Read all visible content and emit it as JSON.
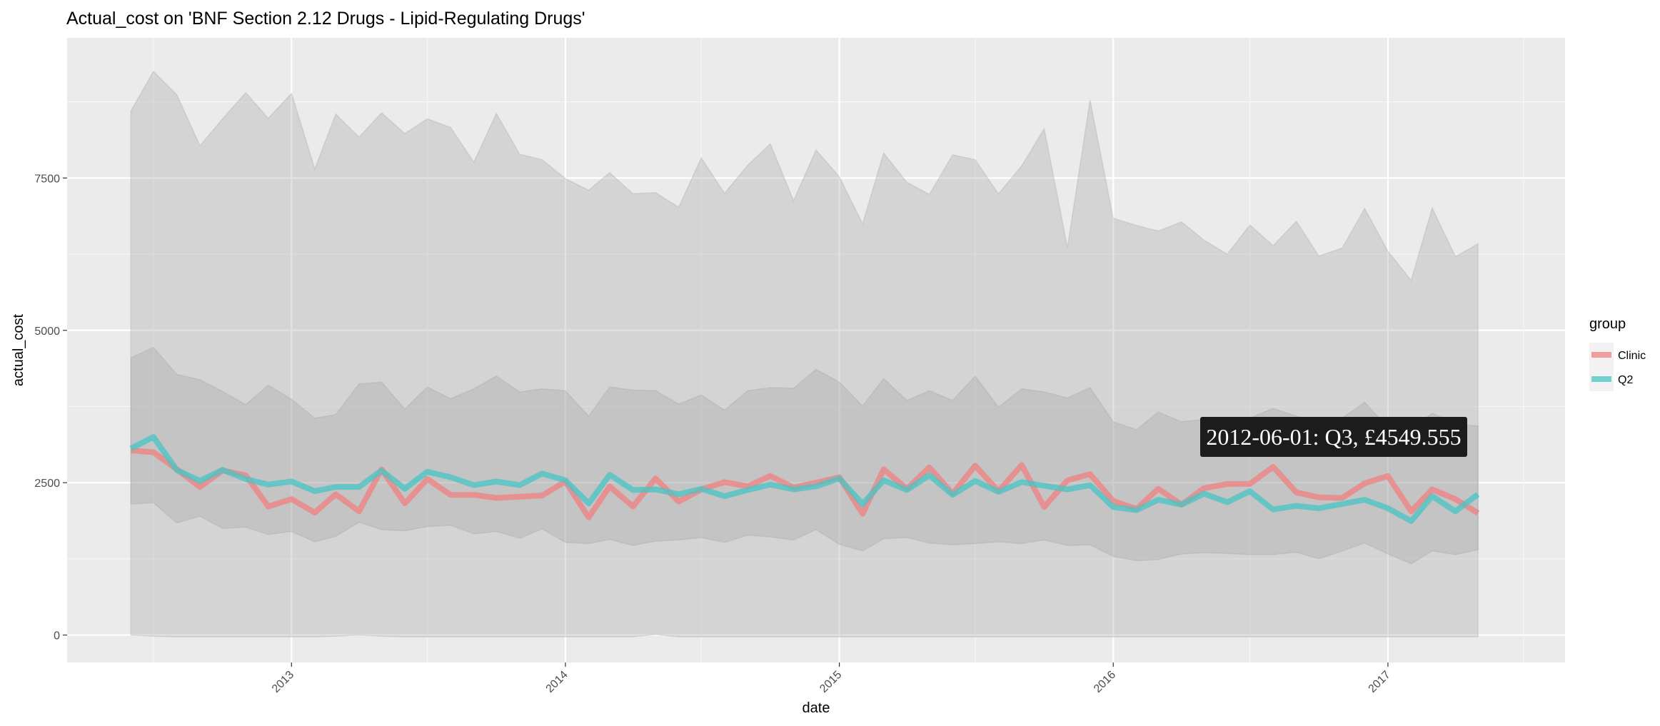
{
  "chart_data": {
    "type": "line",
    "title": "Actual_cost on 'BNF Section 2.12 Drugs - Lipid-Regulating Drugs'",
    "xlabel": "date",
    "ylabel": "actual_cost",
    "y_ticks": [
      0,
      2500,
      5000,
      7500
    ],
    "y_tick_labels": [
      "0",
      "2500",
      "5000",
      "7500"
    ],
    "x_ticks": [
      "2013-01-01",
      "2014-01-01",
      "2015-01-01",
      "2016-01-01",
      "2017-01-01"
    ],
    "x_tick_labels": [
      "2013",
      "2014",
      "2015",
      "2016",
      "2017"
    ],
    "xlim": [
      "2012-03-08",
      "2017-08-25"
    ],
    "ylim": [
      -450,
      9800
    ],
    "grid": true,
    "legend": {
      "title": "group",
      "position": "right",
      "entries": [
        "Clinic",
        "Q2"
      ]
    },
    "start": "2012-06-01",
    "step": "monthly",
    "bands": [
      {
        "lower": [
          0,
          -20,
          -30,
          -30,
          -30,
          -30,
          -30,
          -30,
          -30,
          -20,
          0,
          -20,
          -30,
          -30,
          -30,
          -30,
          -30,
          -30,
          -30,
          -30,
          -30,
          -30,
          -30,
          10,
          -30,
          -30,
          -30,
          -30,
          -30,
          -30,
          -30,
          -30,
          -30,
          -30,
          -30,
          -30,
          -30,
          -30,
          -30,
          -30,
          -30,
          -30,
          -30,
          -30,
          -30,
          -30,
          -30,
          -30,
          -30,
          -30,
          -30,
          -30,
          -30,
          -30,
          -30,
          -30,
          -30,
          -30,
          -30,
          -30
        ],
        "upper": [
          8600,
          9250,
          8870,
          8030,
          8470,
          8900,
          8480,
          8890,
          7650,
          8550,
          8170,
          8570,
          8230,
          8470,
          8330,
          7760,
          8560,
          7890,
          7800,
          7490,
          7300,
          7590,
          7240,
          7260,
          7020,
          7830,
          7250,
          7710,
          8060,
          7130,
          7960,
          7520,
          6750,
          7910,
          7430,
          7230,
          7880,
          7800,
          7240,
          7700,
          8310,
          6360,
          8780,
          6840,
          6720,
          6630,
          6780,
          6480,
          6250,
          6730,
          6390,
          6790,
          6220,
          6350,
          7000,
          6300,
          5820,
          7010,
          6210,
          6420
        ]
      },
      {
        "lower": [
          2150,
          2170,
          1840,
          1950,
          1750,
          1770,
          1650,
          1700,
          1530,
          1620,
          1850,
          1730,
          1710,
          1780,
          1800,
          1660,
          1700,
          1590,
          1740,
          1520,
          1500,
          1570,
          1470,
          1540,
          1560,
          1600,
          1520,
          1640,
          1610,
          1560,
          1730,
          1490,
          1380,
          1580,
          1600,
          1510,
          1480,
          1500,
          1530,
          1500,
          1560,
          1470,
          1480,
          1290,
          1220,
          1240,
          1330,
          1350,
          1340,
          1320,
          1320,
          1360,
          1250,
          1380,
          1510,
          1330,
          1170,
          1380,
          1320,
          1400
        ],
        "upper": [
          4550,
          4720,
          4280,
          4190,
          4000,
          3780,
          4100,
          3870,
          3560,
          3620,
          4120,
          4150,
          3710,
          4070,
          3880,
          4040,
          4250,
          3990,
          4040,
          4010,
          3590,
          4070,
          4020,
          4010,
          3790,
          3940,
          3690,
          4010,
          4060,
          4050,
          4360,
          4150,
          3760,
          4210,
          3850,
          4010,
          3850,
          4250,
          3740,
          4040,
          3990,
          3890,
          4060,
          3500,
          3370,
          3660,
          3500,
          3540,
          3560,
          3560,
          3720,
          3590,
          3510,
          3560,
          3820,
          3400,
          3380,
          3640,
          3470,
          3430
        ]
      }
    ],
    "series": [
      {
        "name": "Clinic",
        "color": "#f08080",
        "values": [
          3030,
          3000,
          2720,
          2430,
          2700,
          2620,
          2110,
          2230,
          2010,
          2310,
          2030,
          2720,
          2160,
          2560,
          2300,
          2300,
          2250,
          2270,
          2290,
          2520,
          1930,
          2440,
          2110,
          2570,
          2190,
          2390,
          2510,
          2440,
          2610,
          2420,
          2500,
          2590,
          1990,
          2720,
          2400,
          2750,
          2320,
          2780,
          2360,
          2790,
          2100,
          2540,
          2640,
          2200,
          2070,
          2400,
          2140,
          2410,
          2480,
          2480,
          2760,
          2340,
          2260,
          2250,
          2490,
          2610,
          2030,
          2390,
          2230,
          2000
        ]
      },
      {
        "name": "Q2",
        "color": "#48c4c4",
        "values": [
          3060,
          3250,
          2710,
          2530,
          2710,
          2560,
          2470,
          2520,
          2360,
          2430,
          2430,
          2700,
          2400,
          2680,
          2590,
          2460,
          2520,
          2460,
          2650,
          2540,
          2160,
          2630,
          2380,
          2390,
          2310,
          2400,
          2280,
          2380,
          2470,
          2390,
          2440,
          2570,
          2150,
          2540,
          2380,
          2620,
          2300,
          2530,
          2350,
          2510,
          2450,
          2390,
          2460,
          2100,
          2050,
          2220,
          2140,
          2320,
          2180,
          2360,
          2060,
          2120,
          2080,
          2150,
          2220,
          2080,
          1870,
          2280,
          2030,
          2310
        ]
      }
    ],
    "annotations": [
      {
        "text": "2012-06-01: Q3, £4549.555"
      }
    ]
  }
}
